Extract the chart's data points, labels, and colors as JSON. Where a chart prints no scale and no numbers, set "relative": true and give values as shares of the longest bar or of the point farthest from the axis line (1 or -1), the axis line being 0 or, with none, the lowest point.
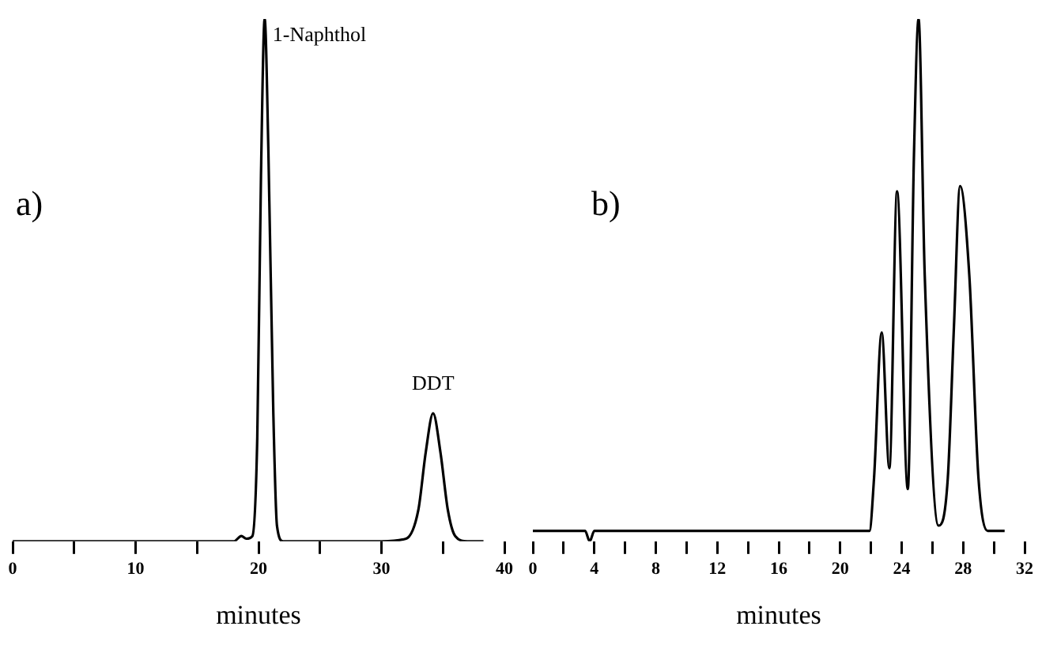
{
  "chart_data": [
    {
      "type": "line",
      "relative": true,
      "xlabel": "minutes",
      "tick_labels": "x",
      "grid": false,
      "legend": false,
      "marker": "none",
      "line_style": "solid",
      "xlim": [
        0,
        40
      ],
      "xticks": [
        0,
        {
          "value": 5,
          "label": null
        },
        10,
        {
          "value": 15,
          "label": null
        },
        20,
        {
          "value": 25,
          "label": null
        },
        30,
        {
          "value": 35,
          "label": null
        },
        40
      ],
      "annotations": [
        "a)",
        {
          "text": "1-Naphthol",
          "x": 20.5,
          "y": 1
        },
        {
          "text": "DDT",
          "x": 34.2,
          "y": 0.245
        }
      ],
      "series": [
        {
          "color": "#000000",
          "x": [
            0,
            18,
            18.6,
            19.0,
            19.5,
            19.9,
            20.2,
            20.5,
            20.8,
            21.2,
            21.5,
            22,
            30,
            32,
            33,
            33.6,
            34.2,
            34.8,
            35.4,
            36,
            37,
            38.3
          ],
          "values": [
            0,
            0,
            0.01,
            0.005,
            0.01,
            0.2,
            0.7,
            1,
            0.75,
            0.25,
            0.03,
            0,
            0,
            0.005,
            0.06,
            0.17,
            0.245,
            0.17,
            0.06,
            0.01,
            0,
            0
          ]
        }
      ]
    },
    {
      "type": "line",
      "relative": true,
      "xlabel": "minutes",
      "tick_labels": "x",
      "grid": false,
      "legend": false,
      "marker": "none",
      "line_style": "solid",
      "xlim": [
        0,
        32
      ],
      "xticks": [
        0,
        {
          "value": 2,
          "label": null
        },
        4,
        {
          "value": 6,
          "label": null
        },
        8,
        {
          "value": 10,
          "label": null
        },
        12,
        {
          "value": 14,
          "label": null
        },
        16,
        {
          "value": 18,
          "label": null
        },
        20,
        {
          "value": 22,
          "label": null
        },
        24,
        {
          "value": 26,
          "label": null
        },
        28,
        {
          "value": 30,
          "label": null
        },
        32
      ],
      "annotations": [
        "b)"
      ],
      "series": [
        {
          "color": "#000000",
          "x": [
            0,
            3.4,
            3.7,
            4.0,
            21.9,
            22.2,
            22.7,
            23.2,
            23.7,
            24.4,
            24.8,
            25.1,
            25.5,
            26.4,
            27.0,
            27.4,
            27.8,
            28.4,
            29.0,
            29.6,
            30.7
          ],
          "values": [
            0.02,
            0.02,
            0,
            0.02,
            0.02,
            0.12,
            0.4,
            0.14,
            0.67,
            0.1,
            0.74,
            1,
            0.51,
            0.03,
            0.12,
            0.41,
            0.68,
            0.51,
            0.12,
            0.02,
            0.02
          ]
        }
      ]
    }
  ]
}
